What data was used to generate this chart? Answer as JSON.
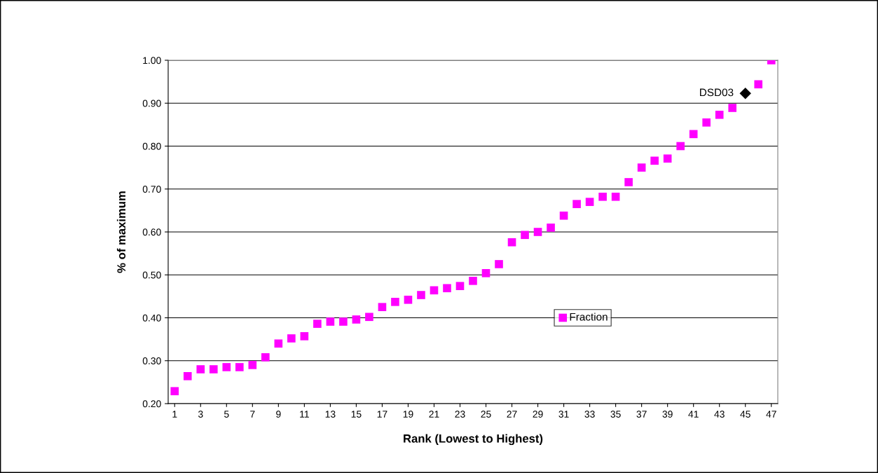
{
  "chart_data": {
    "type": "scatter",
    "xlabel": "Rank (Lowest to Highest)",
    "ylabel": "% of maximum",
    "x": [
      1,
      2,
      3,
      4,
      5,
      6,
      7,
      8,
      9,
      10,
      11,
      12,
      13,
      14,
      15,
      16,
      17,
      18,
      19,
      20,
      21,
      22,
      23,
      24,
      25,
      26,
      27,
      28,
      29,
      30,
      31,
      32,
      33,
      34,
      35,
      36,
      37,
      38,
      39,
      40,
      41,
      42,
      43,
      44,
      45,
      46,
      47
    ],
    "series": [
      {
        "name": "Fraction",
        "color": "#ff00ff",
        "marker": "square",
        "values": [
          0.229,
          0.264,
          0.28,
          0.28,
          0.285,
          0.285,
          0.29,
          0.308,
          0.34,
          0.352,
          0.357,
          0.386,
          0.391,
          0.391,
          0.396,
          0.402,
          0.425,
          0.437,
          0.442,
          0.453,
          0.464,
          0.469,
          0.474,
          0.486,
          0.504,
          0.525,
          0.576,
          0.593,
          0.6,
          0.61,
          0.638,
          0.665,
          0.67,
          0.682,
          0.682,
          0.716,
          0.75,
          0.766,
          0.771,
          0.8,
          0.828,
          0.855,
          0.873,
          0.889,
          null,
          0.944,
          1.0
        ]
      },
      {
        "color": "#000000",
        "marker": "diamond",
        "x": [
          45
        ],
        "values": [
          0.923
        ]
      }
    ],
    "annotations": [
      {
        "text": "DSD03",
        "x": 45,
        "y": 0.923
      }
    ],
    "xlim": [
      0.5,
      47.5
    ],
    "xticks": [
      1,
      3,
      5,
      7,
      9,
      11,
      13,
      15,
      17,
      19,
      21,
      23,
      25,
      27,
      29,
      31,
      33,
      35,
      37,
      39,
      41,
      43,
      45,
      47
    ],
    "ylim": [
      0.2,
      1.0
    ],
    "yticks": [
      {
        "value": 0.2,
        "label": "0.20"
      },
      {
        "value": 0.3,
        "label": "0.30"
      },
      {
        "value": 0.4,
        "label": "0.40"
      },
      {
        "value": 0.5,
        "label": "0.50"
      },
      {
        "value": 0.6,
        "label": "0.60"
      },
      {
        "value": 0.7,
        "label": "0.70"
      },
      {
        "value": 0.8,
        "label": "0.80"
      },
      {
        "value": 0.9,
        "label": "0.90"
      },
      {
        "value": 1.0,
        "label": "1.00"
      }
    ],
    "grid": "y",
    "legend": "bottom right"
  }
}
